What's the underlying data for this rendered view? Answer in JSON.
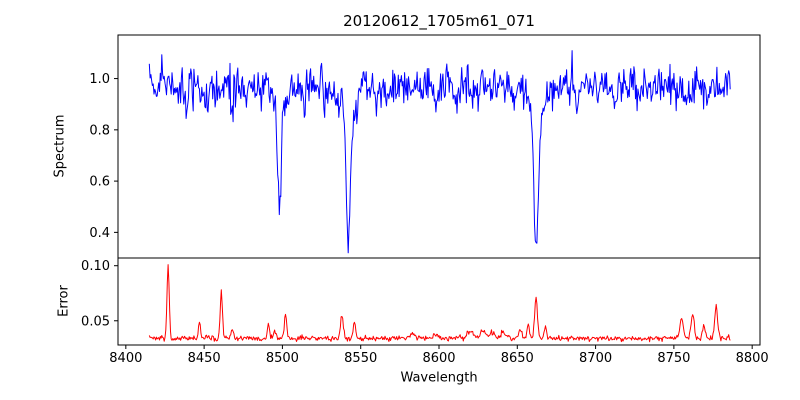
{
  "figure": {
    "title": "20120612_1705m61_071",
    "background": "#ffffff"
  },
  "x_axis": {
    "label": "Wavelength",
    "ticks": [
      8400,
      8450,
      8500,
      8550,
      8600,
      8650,
      8700,
      8750,
      8800
    ],
    "tick_labels": [
      "8400",
      "8450",
      "8500",
      "8550",
      "8600",
      "8650",
      "8700",
      "8750",
      "8800"
    ]
  },
  "chart_data": [
    {
      "type": "line",
      "id": "spectrum",
      "ylabel": "Spectrum",
      "color": "#0000ff",
      "line_width": 1,
      "xlim": [
        8395,
        8805
      ],
      "ylim": [
        0.3,
        1.17
      ],
      "yticks": [
        0.4,
        0.6,
        0.8,
        1.0
      ],
      "ytick_labels": [
        "0.4",
        "0.6",
        "0.8",
        "1.0"
      ],
      "x_start": 8415,
      "x_end": 8786,
      "x_step": 0.5,
      "continuum": 0.97,
      "noise_sigma": 0.037,
      "noise_seed": 20120612,
      "absorption_lines": [
        {
          "center": 8498.0,
          "depth": 0.4,
          "sigma": 1.1
        },
        {
          "center": 8498.0,
          "depth": 0.09,
          "sigma": 3.0
        },
        {
          "center": 8542.1,
          "depth": 0.47,
          "sigma": 1.3
        },
        {
          "center": 8542.1,
          "depth": 0.14,
          "sigma": 4.5
        },
        {
          "center": 8662.1,
          "depth": 0.51,
          "sigma": 1.3
        },
        {
          "center": 8662.1,
          "depth": 0.13,
          "sigma": 4.5
        },
        {
          "center": 8439,
          "depth": 0.06,
          "sigma": 0.9
        },
        {
          "center": 8451,
          "depth": 0.07,
          "sigma": 0.9
        },
        {
          "center": 8468,
          "depth": 0.09,
          "sigma": 0.9
        },
        {
          "center": 8478,
          "depth": 0.05,
          "sigma": 0.9
        },
        {
          "center": 8514,
          "depth": 0.06,
          "sigma": 0.9
        },
        {
          "center": 8527,
          "depth": 0.05,
          "sigma": 0.9
        },
        {
          "center": 8560,
          "depth": 0.05,
          "sigma": 0.9
        },
        {
          "center": 8583,
          "depth": 0.06,
          "sigma": 0.9
        },
        {
          "center": 8598,
          "depth": 0.07,
          "sigma": 0.9
        },
        {
          "center": 8611,
          "depth": 0.05,
          "sigma": 0.9
        },
        {
          "center": 8621,
          "depth": 0.05,
          "sigma": 0.9
        },
        {
          "center": 8648,
          "depth": 0.05,
          "sigma": 0.9
        },
        {
          "center": 8688,
          "depth": 0.07,
          "sigma": 0.9
        },
        {
          "center": 8702,
          "depth": 0.05,
          "sigma": 0.9
        },
        {
          "center": 8713,
          "depth": 0.05,
          "sigma": 0.9
        },
        {
          "center": 8736,
          "depth": 0.05,
          "sigma": 0.9
        },
        {
          "center": 8757,
          "depth": 0.05,
          "sigma": 0.9
        },
        {
          "center": 8773,
          "depth": 0.06,
          "sigma": 0.9
        }
      ]
    },
    {
      "type": "line",
      "id": "error",
      "ylabel": "Error",
      "color": "#ff0000",
      "line_width": 1,
      "xlim": [
        8395,
        8805
      ],
      "ylim": [
        0.028,
        0.107
      ],
      "yticks": [
        0.05,
        0.1
      ],
      "ytick_labels": [
        "0.05",
        "0.10"
      ],
      "x_start": 8415,
      "x_end": 8786,
      "x_step": 0.5,
      "baseline": 0.034,
      "floor": 0.031,
      "noise_sigma": 0.0012,
      "noise_seed": 1705,
      "spikes": [
        {
          "center": 8427,
          "amp": 0.066,
          "sigma": 0.7
        },
        {
          "center": 8447,
          "amp": 0.014,
          "sigma": 0.7
        },
        {
          "center": 8461,
          "amp": 0.043,
          "sigma": 0.7
        },
        {
          "center": 8468,
          "amp": 0.008,
          "sigma": 0.7
        },
        {
          "center": 8491,
          "amp": 0.013,
          "sigma": 0.7
        },
        {
          "center": 8495,
          "amp": 0.009,
          "sigma": 0.6
        },
        {
          "center": 8502,
          "amp": 0.02,
          "sigma": 0.8
        },
        {
          "center": 8538,
          "amp": 0.021,
          "sigma": 0.9
        },
        {
          "center": 8546,
          "amp": 0.014,
          "sigma": 0.8
        },
        {
          "center": 8583,
          "amp": 0.004,
          "sigma": 1.5
        },
        {
          "center": 8598,
          "amp": 0.004,
          "sigma": 1.5
        },
        {
          "center": 8620,
          "amp": 0.006,
          "sigma": 2.0
        },
        {
          "center": 8628,
          "amp": 0.007,
          "sigma": 1.5
        },
        {
          "center": 8634,
          "amp": 0.006,
          "sigma": 1.5
        },
        {
          "center": 8641,
          "amp": 0.005,
          "sigma": 1.5
        },
        {
          "center": 8652,
          "amp": 0.008,
          "sigma": 0.9
        },
        {
          "center": 8657,
          "amp": 0.012,
          "sigma": 0.8
        },
        {
          "center": 8662,
          "amp": 0.036,
          "sigma": 0.9
        },
        {
          "center": 8668,
          "amp": 0.01,
          "sigma": 0.8
        },
        {
          "center": 8755,
          "amp": 0.019,
          "sigma": 1.0
        },
        {
          "center": 8762,
          "amp": 0.023,
          "sigma": 1.0
        },
        {
          "center": 8769,
          "amp": 0.012,
          "sigma": 0.9
        },
        {
          "center": 8777,
          "amp": 0.031,
          "sigma": 0.9
        }
      ]
    }
  ]
}
